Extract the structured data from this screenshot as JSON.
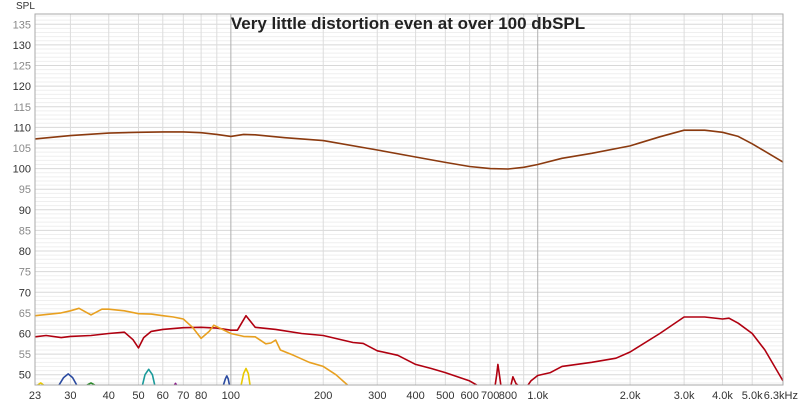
{
  "chart_data": {
    "type": "line",
    "title": "Very little distortion even at over 100 dbSPL",
    "ylabel": "SPL",
    "xlabel": "",
    "xscale": "log",
    "xlim": [
      23,
      6300
    ],
    "ylim": [
      47.5,
      137.5
    ],
    "grid": true,
    "x_ticks": [
      {
        "value": 23,
        "label": "23"
      },
      {
        "value": 30,
        "label": "30"
      },
      {
        "value": 40,
        "label": "40"
      },
      {
        "value": 50,
        "label": "50"
      },
      {
        "value": 60,
        "label": "60"
      },
      {
        "value": 70,
        "label": "70"
      },
      {
        "value": 80,
        "label": "80"
      },
      {
        "value": 100,
        "label": "100"
      },
      {
        "value": 200,
        "label": "200"
      },
      {
        "value": 300,
        "label": "300"
      },
      {
        "value": 400,
        "label": "400"
      },
      {
        "value": 500,
        "label": "500"
      },
      {
        "value": 600,
        "label": "600"
      },
      {
        "value": 700,
        "label": "700"
      },
      {
        "value": 800,
        "label": "800"
      },
      {
        "value": 1000,
        "label": "1.0k"
      },
      {
        "value": 2000,
        "label": "2.0k"
      },
      {
        "value": 3000,
        "label": "3.0k"
      },
      {
        "value": 4000,
        "label": "4.0k"
      },
      {
        "value": 5000,
        "label": "5.0k"
      },
      {
        "value": 6300,
        "label": "6.3kHz"
      }
    ],
    "y_ticks": [
      50,
      55,
      60,
      65,
      70,
      75,
      80,
      85,
      90,
      95,
      100,
      105,
      110,
      115,
      120,
      125,
      130,
      135
    ],
    "series": [
      {
        "color": "#8b3a0f",
        "points": [
          [
            23,
            107.2
          ],
          [
            30,
            108
          ],
          [
            40,
            108.6
          ],
          [
            50,
            108.8
          ],
          [
            60,
            108.9
          ],
          [
            70,
            108.9
          ],
          [
            80,
            108.7
          ],
          [
            90,
            108.3
          ],
          [
            100,
            107.8
          ],
          [
            110,
            108.3
          ],
          [
            120,
            108.2
          ],
          [
            150,
            107.5
          ],
          [
            200,
            106.8
          ],
          [
            300,
            104.5
          ],
          [
            400,
            102.8
          ],
          [
            500,
            101.5
          ],
          [
            600,
            100.5
          ],
          [
            700,
            100
          ],
          [
            800,
            99.9
          ],
          [
            900,
            100.3
          ],
          [
            1000,
            101
          ],
          [
            1200,
            102.5
          ],
          [
            1500,
            103.7
          ],
          [
            2000,
            105.5
          ],
          [
            2500,
            107.7
          ],
          [
            3000,
            109.3
          ],
          [
            3500,
            109.3
          ],
          [
            4000,
            108.8
          ],
          [
            4500,
            107.8
          ],
          [
            5000,
            106
          ],
          [
            6300,
            101.6
          ]
        ]
      },
      {
        "color": "#b00010",
        "points": [
          [
            23,
            59.2
          ],
          [
            25,
            59.5
          ],
          [
            28,
            59
          ],
          [
            30,
            59.3
          ],
          [
            35,
            59.5
          ],
          [
            40,
            60
          ],
          [
            45,
            60.3
          ],
          [
            48,
            58.5
          ],
          [
            50,
            56.5
          ],
          [
            52,
            59
          ],
          [
            55,
            60.5
          ],
          [
            60,
            61
          ],
          [
            70,
            61.4
          ],
          [
            80,
            61.5
          ],
          [
            90,
            61.3
          ],
          [
            100,
            60.8
          ],
          [
            105,
            60.8
          ],
          [
            112,
            64.3
          ],
          [
            120,
            61.5
          ],
          [
            140,
            61
          ],
          [
            170,
            60
          ],
          [
            200,
            59.5
          ],
          [
            250,
            57.8
          ],
          [
            270,
            57.6
          ],
          [
            300,
            55.8
          ],
          [
            350,
            54.7
          ],
          [
            400,
            52.5
          ],
          [
            450,
            51.5
          ],
          [
            500,
            50.5
          ],
          [
            600,
            48.5
          ],
          [
            650,
            47
          ]
        ]
      },
      {
        "color": "#b00010",
        "points": [
          [
            725,
            47
          ],
          [
            735,
            50
          ],
          [
            742,
            52.5
          ],
          [
            750,
            50
          ],
          [
            760,
            47
          ]
        ]
      },
      {
        "color": "#b00010",
        "points": [
          [
            815,
            47
          ],
          [
            830,
            49.5
          ],
          [
            850,
            47.8
          ],
          [
            880,
            47
          ]
        ]
      },
      {
        "color": "#b00010",
        "points": [
          [
            920,
            47
          ],
          [
            950,
            48.5
          ],
          [
            1000,
            49.8
          ],
          [
            1100,
            50.5
          ],
          [
            1200,
            52
          ],
          [
            1500,
            53
          ],
          [
            1800,
            54
          ],
          [
            2000,
            55.5
          ],
          [
            2500,
            60
          ],
          [
            3000,
            64
          ],
          [
            3500,
            64
          ],
          [
            4000,
            63.5
          ],
          [
            4200,
            63.7
          ],
          [
            4500,
            62.5
          ],
          [
            5000,
            60
          ],
          [
            5500,
            56
          ],
          [
            6300,
            48.5
          ]
        ]
      },
      {
        "color": "#e8a020",
        "points": [
          [
            23,
            64.3
          ],
          [
            28,
            65
          ],
          [
            30,
            65.5
          ],
          [
            32,
            66.1
          ],
          [
            35,
            64.5
          ],
          [
            38,
            65.9
          ],
          [
            40,
            65.9
          ],
          [
            45,
            65.5
          ],
          [
            50,
            64.8
          ],
          [
            55,
            64.7
          ],
          [
            60,
            64.3
          ],
          [
            65,
            64
          ],
          [
            70,
            63.5
          ],
          [
            75,
            61.5
          ],
          [
            80,
            58.8
          ],
          [
            85,
            60.5
          ],
          [
            88,
            62
          ],
          [
            95,
            60.8
          ],
          [
            100,
            60
          ],
          [
            110,
            59.3
          ],
          [
            120,
            59.2
          ],
          [
            130,
            57.5
          ],
          [
            135,
            57.7
          ],
          [
            140,
            58.4
          ],
          [
            145,
            56
          ],
          [
            160,
            54.7
          ],
          [
            180,
            53
          ],
          [
            200,
            52
          ],
          [
            220,
            50
          ],
          [
            240,
            47.5
          ]
        ]
      },
      {
        "color": "#e8c800",
        "points": [
          [
            23.4,
            47.4
          ],
          [
            24,
            48
          ],
          [
            24.6,
            47.4
          ]
        ]
      },
      {
        "color": "#2a4aa0",
        "points": [
          [
            27.5,
            47.4
          ],
          [
            28.5,
            49.3
          ],
          [
            29.5,
            50.2
          ],
          [
            30.5,
            49.3
          ],
          [
            31.5,
            47.4
          ]
        ]
      },
      {
        "color": "#2a8a2a",
        "points": [
          [
            33.8,
            47.4
          ],
          [
            35,
            48
          ],
          [
            36.2,
            47.4
          ]
        ]
      },
      {
        "color": "#1a9a9a",
        "points": [
          [
            51.5,
            47.4
          ],
          [
            52.5,
            50
          ],
          [
            54,
            51.3
          ],
          [
            55.5,
            50
          ],
          [
            56.5,
            47.4
          ]
        ]
      },
      {
        "color": "#8a1a8a",
        "points": [
          [
            65.3,
            47.4
          ],
          [
            66,
            47.9
          ],
          [
            66.7,
            47.4
          ]
        ]
      },
      {
        "color": "#2a4aa0",
        "points": [
          [
            94.5,
            47.4
          ],
          [
            96,
            49
          ],
          [
            97,
            49.7
          ],
          [
            98,
            49
          ],
          [
            99,
            47.4
          ]
        ]
      },
      {
        "color": "#e8c800",
        "points": [
          [
            108,
            47.4
          ],
          [
            110,
            50.3
          ],
          [
            112,
            51.5
          ],
          [
            114,
            50.3
          ],
          [
            115.5,
            47.4
          ]
        ]
      }
    ]
  }
}
